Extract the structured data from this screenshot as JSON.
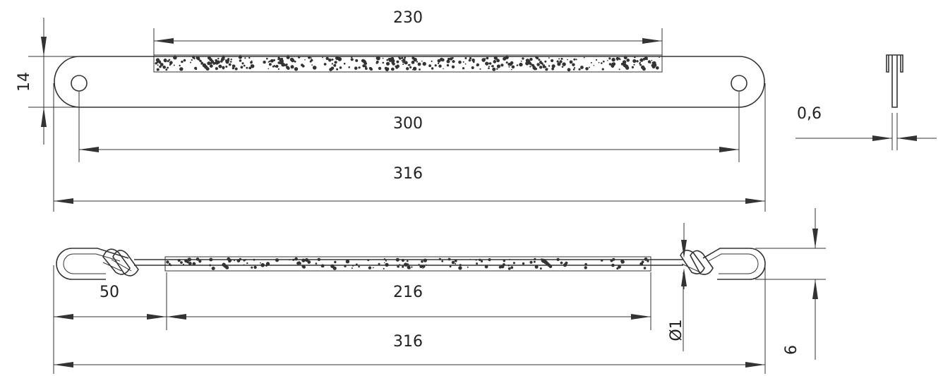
{
  "colors": {
    "line": "#333333",
    "text": "#222222",
    "background": "#ffffff"
  },
  "top_view": {
    "dim_abrasive_length": "230",
    "dim_width": "14",
    "dim_hole_spacing": "300",
    "dim_overall_length": "316"
  },
  "thickness_view": {
    "dim_thickness": "0,6"
  },
  "bottom_view": {
    "dim_loop_offset": "50",
    "dim_abrasive_length": "216",
    "dim_overall_length": "316",
    "dim_wire_diameter": "Ø1",
    "dim_loop_height": "6"
  }
}
